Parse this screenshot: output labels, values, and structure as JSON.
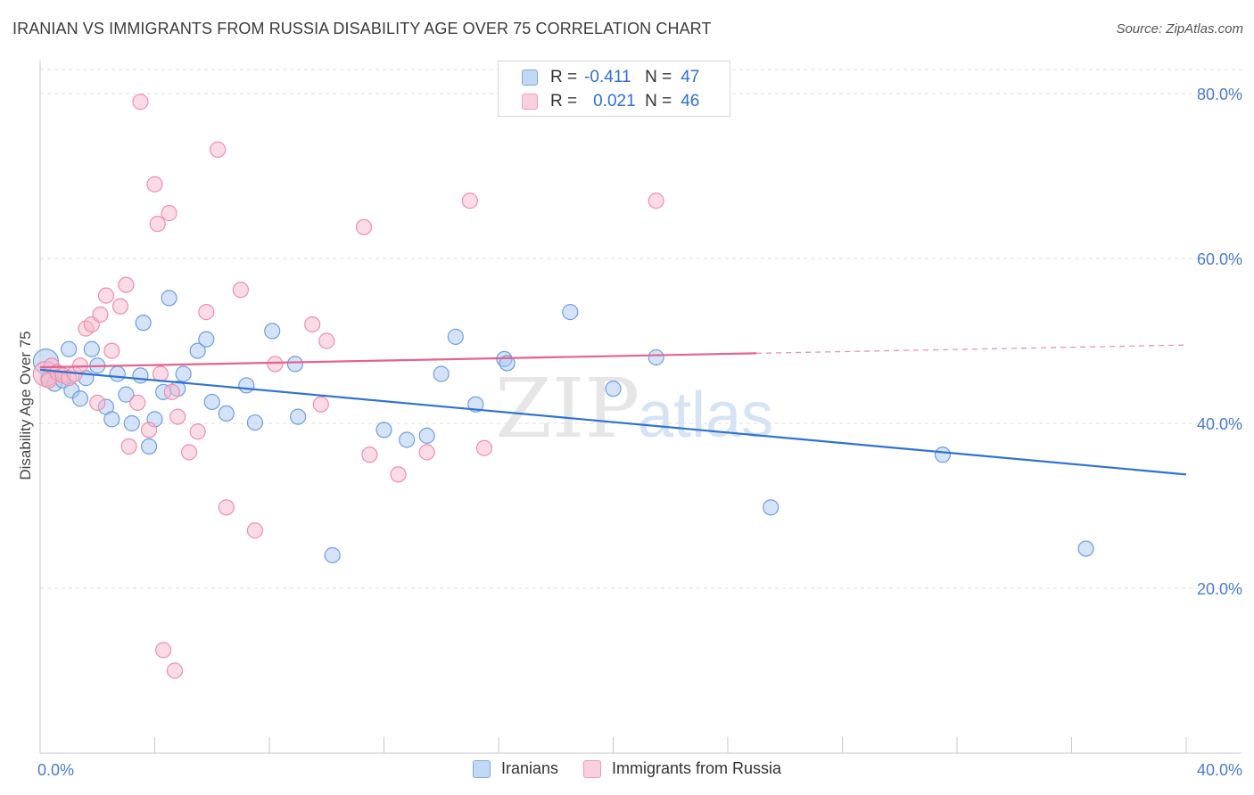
{
  "title": "IRANIAN VS IMMIGRANTS FROM RUSSIA DISABILITY AGE OVER 75 CORRELATION CHART",
  "source": "Source: ZipAtlas.com",
  "watermark": {
    "zip": "ZIP",
    "atlas": "atlas"
  },
  "colors": {
    "iranians_fill": "#a9c8f0",
    "iranians_stroke": "#6f9ee0",
    "iranians_line": "#2f72d2",
    "russia_fill": "#f7b8cb",
    "russia_stroke": "#ee8fab",
    "russia_line": "#e5628d",
    "grid": "#dcdcdc",
    "tick_text": "#4a7cc9"
  },
  "legend": {
    "rows": [
      {
        "r_label": "R =",
        "r_value": "-0.411",
        "n_label": "N =",
        "n_value": "47"
      },
      {
        "r_label": "R =",
        "r_value": "0.021",
        "n_label": "N =",
        "n_value": "46"
      }
    ]
  },
  "chart_data": {
    "type": "scatter",
    "title": "IRANIAN VS IMMIGRANTS FROM RUSSIA DISABILITY AGE OVER 75 CORRELATION CHART",
    "xlabel": "",
    "ylabel": "Disability Age Over 75",
    "xlim": [
      0,
      40
    ],
    "ylim": [
      0,
      84
    ],
    "x_tick_labels": [
      "0.0%",
      "40.0%"
    ],
    "y_ticks": [
      20,
      40,
      60,
      80
    ],
    "y_tick_labels": [
      "20.0%",
      "40.0%",
      "60.0%",
      "80.0%"
    ],
    "grid": true,
    "legend_position": "bottom-center",
    "series": [
      {
        "name": "Iranians",
        "r": -0.411,
        "n": 47,
        "trend": {
          "x0": 0,
          "y0": 46.5,
          "x1": 40,
          "y1": 33.8
        },
        "points": [
          [
            0.2,
            47.5
          ],
          [
            0.3,
            45.5
          ],
          [
            0.5,
            44.8
          ],
          [
            0.8,
            45.2
          ],
          [
            1.0,
            49.0
          ],
          [
            1.1,
            44.0
          ],
          [
            1.4,
            43.0
          ],
          [
            1.6,
            45.5
          ],
          [
            1.8,
            49.0
          ],
          [
            2.0,
            47.0
          ],
          [
            2.3,
            42.0
          ],
          [
            2.5,
            40.5
          ],
          [
            2.7,
            46.0
          ],
          [
            3.0,
            43.5
          ],
          [
            3.2,
            40.0
          ],
          [
            3.5,
            45.8
          ],
          [
            3.6,
            52.2
          ],
          [
            3.8,
            37.2
          ],
          [
            4.0,
            40.5
          ],
          [
            4.3,
            43.8
          ],
          [
            4.5,
            55.2
          ],
          [
            4.8,
            44.2
          ],
          [
            5.0,
            46.0
          ],
          [
            5.5,
            48.8
          ],
          [
            5.8,
            50.2
          ],
          [
            6.0,
            42.6
          ],
          [
            6.5,
            41.2
          ],
          [
            7.2,
            44.6
          ],
          [
            7.5,
            40.1
          ],
          [
            8.1,
            51.2
          ],
          [
            8.9,
            47.2
          ],
          [
            9.0,
            40.8
          ],
          [
            10.2,
            24.0
          ],
          [
            12.0,
            39.2
          ],
          [
            12.8,
            38.0
          ],
          [
            13.5,
            38.5
          ],
          [
            14.0,
            46.0
          ],
          [
            14.5,
            50.5
          ],
          [
            15.2,
            42.3
          ],
          [
            16.2,
            47.8
          ],
          [
            16.3,
            47.3
          ],
          [
            18.5,
            53.5
          ],
          [
            20.0,
            44.2
          ],
          [
            21.5,
            48.0
          ],
          [
            25.5,
            29.8
          ],
          [
            31.5,
            36.2
          ],
          [
            36.5,
            24.8
          ]
        ]
      },
      {
        "name": "Immigrants from Russia",
        "r": 0.021,
        "n": 46,
        "trend": {
          "x0": 0,
          "y0": 46.8,
          "x1": 25,
          "y1": 48.5
        },
        "trend_dashed_extension": {
          "x0": 25,
          "y0": 48.5,
          "x1": 40,
          "y1": 49.5
        },
        "points": [
          [
            0.2,
            46.0
          ],
          [
            0.3,
            45.2
          ],
          [
            0.4,
            47.0
          ],
          [
            0.6,
            46.2
          ],
          [
            0.8,
            45.8
          ],
          [
            1.0,
            45.5
          ],
          [
            1.2,
            46.0
          ],
          [
            1.4,
            47.0
          ],
          [
            1.6,
            51.5
          ],
          [
            1.8,
            52.0
          ],
          [
            2.0,
            42.5
          ],
          [
            2.1,
            53.2
          ],
          [
            2.3,
            55.5
          ],
          [
            2.5,
            48.8
          ],
          [
            2.8,
            54.2
          ],
          [
            3.0,
            56.8
          ],
          [
            3.1,
            37.2
          ],
          [
            3.4,
            42.5
          ],
          [
            3.5,
            79.0
          ],
          [
            3.8,
            39.2
          ],
          [
            4.0,
            69.0
          ],
          [
            4.1,
            64.2
          ],
          [
            4.2,
            46.0
          ],
          [
            4.3,
            12.5
          ],
          [
            4.5,
            65.5
          ],
          [
            4.6,
            43.8
          ],
          [
            4.7,
            10.0
          ],
          [
            4.8,
            40.8
          ],
          [
            5.2,
            36.5
          ],
          [
            5.5,
            39.0
          ],
          [
            5.8,
            53.5
          ],
          [
            6.2,
            73.2
          ],
          [
            6.5,
            29.8
          ],
          [
            7.0,
            56.2
          ],
          [
            7.5,
            27.0
          ],
          [
            8.2,
            47.2
          ],
          [
            9.5,
            52.0
          ],
          [
            9.8,
            42.3
          ],
          [
            10.0,
            50.0
          ],
          [
            11.3,
            63.8
          ],
          [
            11.5,
            36.2
          ],
          [
            12.5,
            33.8
          ],
          [
            13.5,
            36.5
          ],
          [
            15.0,
            67.0
          ],
          [
            15.5,
            37.0
          ],
          [
            21.5,
            67.0
          ]
        ]
      }
    ]
  }
}
